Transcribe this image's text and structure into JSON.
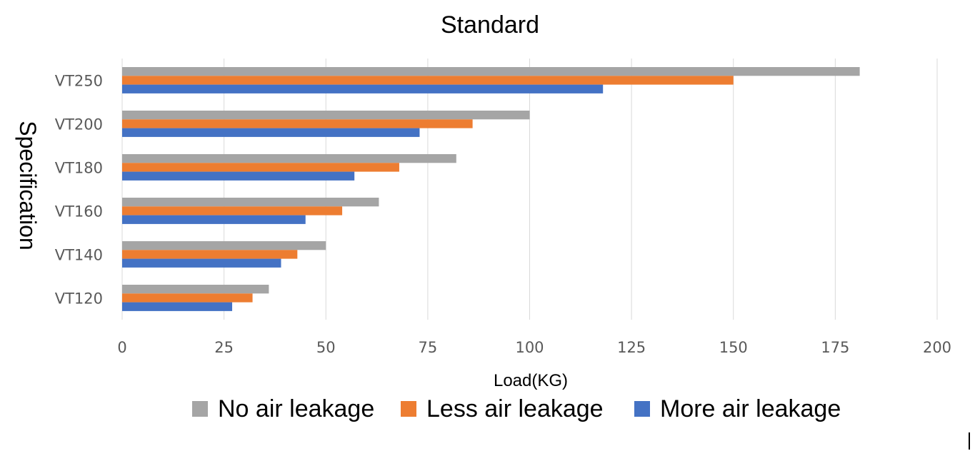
{
  "chart_data": {
    "type": "bar",
    "orientation": "horizontal",
    "title": "Standard",
    "xlabel": "Load(KG)",
    "ylabel": "Specification",
    "categories": [
      "VT250",
      "VT200",
      "VT180",
      "VT160",
      "VT140",
      "VT120"
    ],
    "series": [
      {
        "name": "No air leakage",
        "color": "#a5a5a5",
        "values": [
          181,
          100,
          82,
          63,
          50,
          36
        ]
      },
      {
        "name": "Less air leakage",
        "color": "#ed7d31",
        "values": [
          150,
          86,
          68,
          54,
          43,
          32
        ]
      },
      {
        "name": "More air leakage",
        "color": "#4472c4",
        "values": [
          118,
          73,
          57,
          45,
          39,
          27
        ]
      }
    ],
    "xlim": [
      0,
      200
    ],
    "xticks": [
      0,
      25,
      50,
      75,
      100,
      125,
      150,
      175,
      200
    ],
    "grid": "vertical",
    "legend_position": "bottom"
  }
}
